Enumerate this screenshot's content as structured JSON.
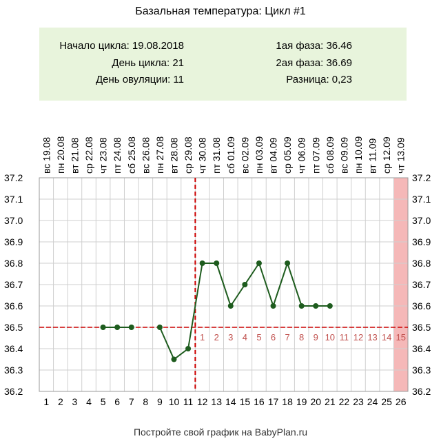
{
  "title": "Базальная температура: Цикл #1",
  "info": {
    "left": [
      {
        "label": "Начало цикла:",
        "value": "19.08.2018"
      },
      {
        "label": "День цикла:",
        "value": "21"
      },
      {
        "label": "День овуляции:",
        "value": "11"
      }
    ],
    "right": [
      {
        "label": "1ая фаза:",
        "value": "36.46"
      },
      {
        "label": "2ая фаза:",
        "value": "36.69"
      },
      {
        "label": "Разница:",
        "value": "0,23"
      }
    ]
  },
  "footer": "Постройте свой график на BabyPlan.ru",
  "colors": {
    "line": "#1e5c1e",
    "marker": "#1e5c1e",
    "coverline": "#cc0000",
    "ovulation_line": "#cc0000",
    "highlight": "#f5b8b8",
    "info_bg": "#e8f4dc",
    "phase_numbers": "#c0504d"
  },
  "chart_data": {
    "type": "line",
    "title": "Базальная температура: Цикл #1",
    "x": [
      1,
      2,
      3,
      4,
      5,
      6,
      7,
      8,
      9,
      10,
      11,
      12,
      13,
      14,
      15,
      16,
      17,
      18,
      19,
      20,
      21,
      22,
      23,
      24,
      25,
      26
    ],
    "dates": [
      "19.08",
      "20.08",
      "21.08",
      "22.08",
      "23.08",
      "24.08",
      "25.08",
      "26.08",
      "27.08",
      "28.08",
      "29.08",
      "30.08",
      "31.08",
      "01.09",
      "02.09",
      "03.09",
      "04.09",
      "05.09",
      "06.09",
      "07.09",
      "08.09",
      "09.09",
      "10.09",
      "11.09",
      "12.09",
      "13.09"
    ],
    "weekdays": [
      "вс",
      "пн",
      "вт",
      "ср",
      "чт",
      "пт",
      "сб",
      "вс",
      "пн",
      "вт",
      "ср",
      "чт",
      "пт",
      "сб",
      "вс",
      "пн",
      "вт",
      "ср",
      "чт",
      "пт",
      "сб",
      "вс",
      "пн",
      "вт",
      "ср",
      "чт"
    ],
    "values": [
      null,
      null,
      null,
      null,
      36.5,
      36.5,
      36.5,
      null,
      36.5,
      36.35,
      36.4,
      36.8,
      36.8,
      36.6,
      36.7,
      36.8,
      36.6,
      36.8,
      36.6,
      36.6,
      36.6,
      null,
      null,
      null,
      null,
      null
    ],
    "ylim": [
      36.2,
      37.2
    ],
    "yticks": [
      "37.2",
      "37.1",
      "37.0",
      "36.9",
      "36.8",
      "36.7",
      "36.6",
      "36.5",
      "36.4",
      "36.3",
      "36.2"
    ],
    "coverline": 36.5,
    "ovulation_day": 11,
    "luteal_labels": [
      "1",
      "2",
      "3",
      "4",
      "5",
      "6",
      "7",
      "8",
      "9",
      "10",
      "11",
      "12",
      "13",
      "14",
      "15"
    ],
    "highlight_day": 26,
    "grid": true
  }
}
